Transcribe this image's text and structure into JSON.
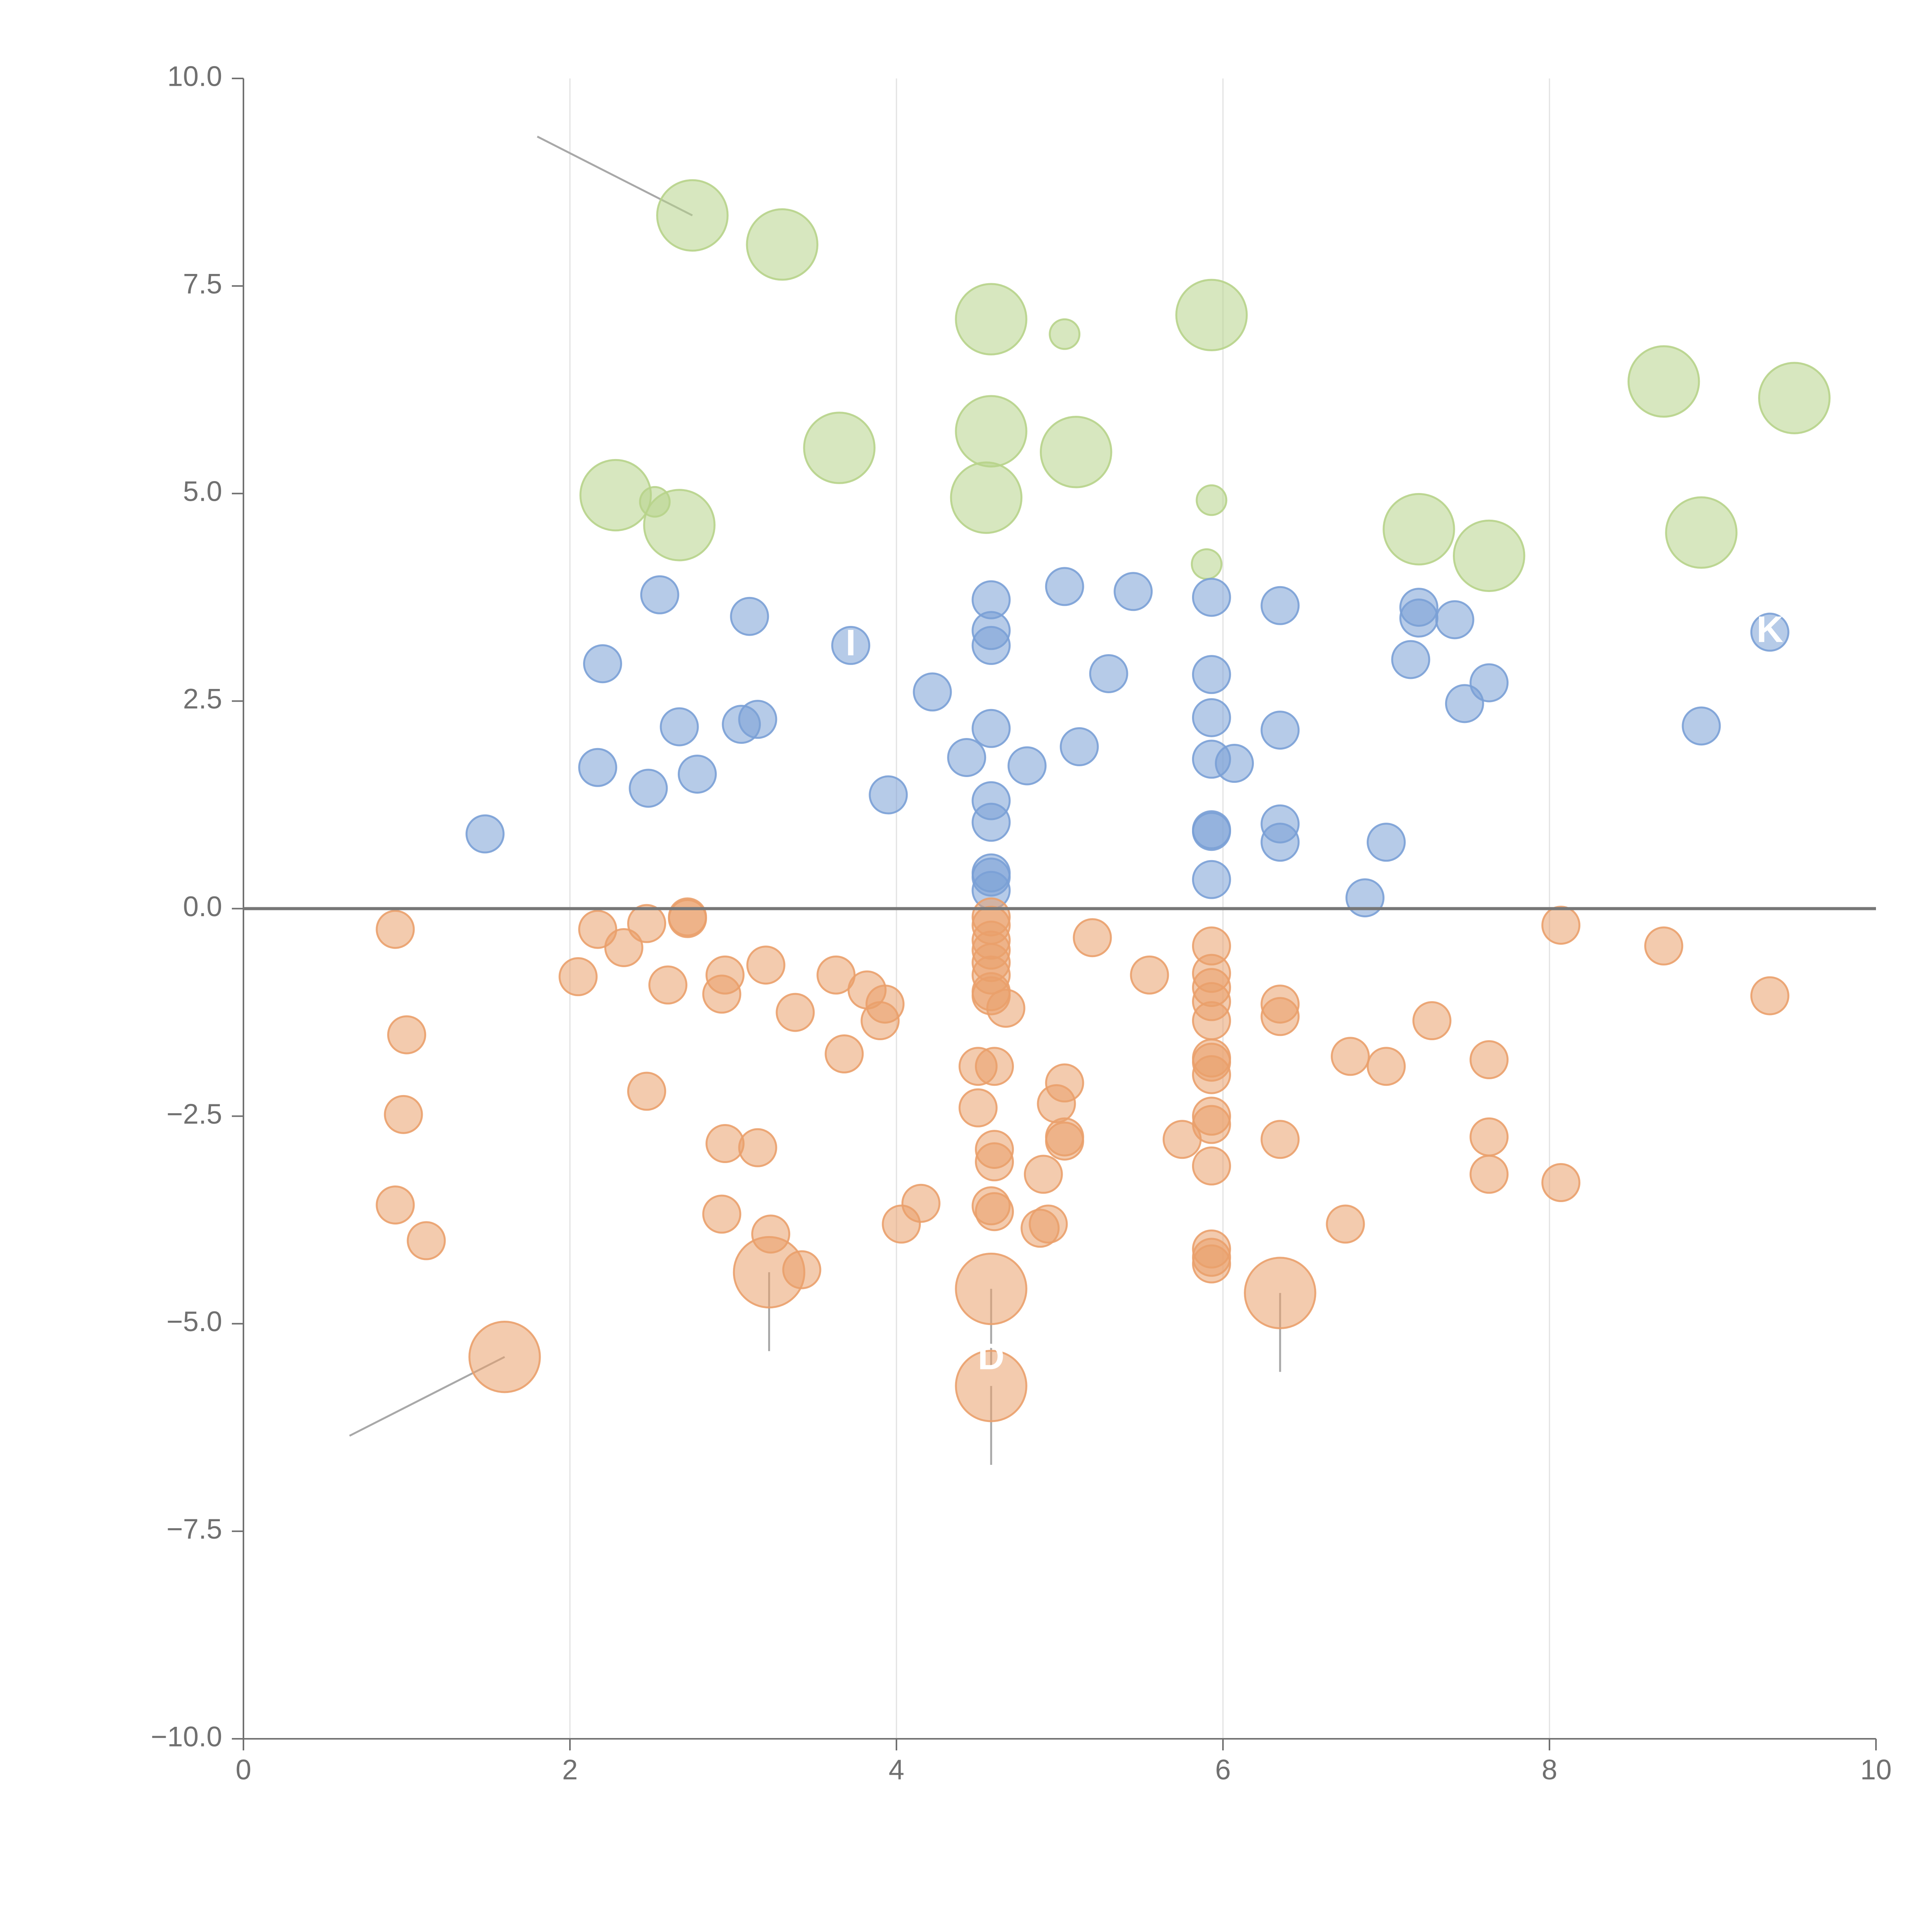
{
  "colors": {
    "positive": "#7aa0d6",
    "upper": "#b7d38a",
    "negative": "#eaa06c",
    "grid": "#e2e2e2",
    "axis": "#707070",
    "zero_line": "#777777",
    "leader": "#a8a8a8"
  },
  "chart_data": {
    "type": "scatter",
    "xlim": [
      0,
      10
    ],
    "ylim": [
      -10,
      10
    ],
    "x_ticks": [
      0,
      2,
      4,
      6,
      8,
      10
    ],
    "y_ticks": [
      10.0,
      7.5,
      5.0,
      2.5,
      0.0,
      -2.5,
      -5.0,
      -7.5,
      -10.0
    ],
    "x_tick_labels": [
      "0",
      "2",
      "4",
      "6",
      "8",
      "10"
    ],
    "y_tick_labels": [
      "10.0",
      "7.5",
      "5.0",
      "2.5",
      "0.0",
      "−2.5",
      "−5.0",
      "−7.5",
      "−10.0"
    ],
    "grid": "vertical lines at x = 2, 4, 6, 8",
    "zero_line": true,
    "series": [
      {
        "color_key": "upper",
        "points": [
          {
            "x": 2.75,
            "y": 8.35,
            "r": 1.9
          },
          {
            "x": 3.3,
            "y": 8.0,
            "r": 1.9
          },
          {
            "x": 4.58,
            "y": 7.1,
            "r": 1.9
          },
          {
            "x": 5.03,
            "y": 6.92,
            "r": 0.8
          },
          {
            "x": 5.93,
            "y": 7.15,
            "r": 1.9
          },
          {
            "x": 8.7,
            "y": 6.35,
            "r": 1.9
          },
          {
            "x": 9.5,
            "y": 6.15,
            "r": 1.9
          },
          {
            "x": 3.65,
            "y": 5.55,
            "r": 1.9
          },
          {
            "x": 4.58,
            "y": 5.75,
            "r": 1.9
          },
          {
            "x": 5.1,
            "y": 5.5,
            "r": 1.9
          },
          {
            "x": 2.28,
            "y": 4.98,
            "r": 1.9
          },
          {
            "x": 2.52,
            "y": 4.9,
            "r": 0.8
          },
          {
            "x": 2.67,
            "y": 4.62,
            "r": 1.9
          },
          {
            "x": 4.55,
            "y": 4.95,
            "r": 1.9
          },
          {
            "x": 5.93,
            "y": 4.92,
            "r": 0.8
          },
          {
            "x": 5.9,
            "y": 4.15,
            "r": 0.8
          },
          {
            "x": 7.2,
            "y": 4.57,
            "r": 1.9
          },
          {
            "x": 7.63,
            "y": 4.25,
            "r": 1.9
          },
          {
            "x": 8.93,
            "y": 4.53,
            "r": 1.9
          }
        ]
      },
      {
        "color_key": "positive",
        "points": [
          {
            "x": 2.55,
            "y": 3.78
          },
          {
            "x": 3.1,
            "y": 3.52
          },
          {
            "x": 2.2,
            "y": 2.95
          },
          {
            "x": 3.72,
            "y": 3.17
          },
          {
            "x": 2.67,
            "y": 2.19
          },
          {
            "x": 3.05,
            "y": 2.22
          },
          {
            "x": 3.15,
            "y": 2.28
          },
          {
            "x": 2.17,
            "y": 1.7
          },
          {
            "x": 2.48,
            "y": 1.45
          },
          {
            "x": 2.78,
            "y": 1.62
          },
          {
            "x": 1.48,
            "y": 0.9
          },
          {
            "x": 3.95,
            "y": 1.37
          },
          {
            "x": 4.22,
            "y": 2.61
          },
          {
            "x": 4.58,
            "y": 3.72
          },
          {
            "x": 4.58,
            "y": 3.35
          },
          {
            "x": 4.58,
            "y": 3.17
          },
          {
            "x": 4.58,
            "y": 2.17
          },
          {
            "x": 4.43,
            "y": 1.82
          },
          {
            "x": 4.8,
            "y": 1.72
          },
          {
            "x": 4.58,
            "y": 1.3
          },
          {
            "x": 4.58,
            "y": 1.04
          },
          {
            "x": 4.58,
            "y": 0.43
          },
          {
            "x": 4.58,
            "y": 0.38
          },
          {
            "x": 4.58,
            "y": 0.22
          },
          {
            "x": 5.03,
            "y": 3.88
          },
          {
            "x": 5.45,
            "y": 3.82
          },
          {
            "x": 5.3,
            "y": 2.83
          },
          {
            "x": 5.12,
            "y": 1.95
          },
          {
            "x": 5.93,
            "y": 3.75
          },
          {
            "x": 5.93,
            "y": 2.82
          },
          {
            "x": 5.93,
            "y": 2.3
          },
          {
            "x": 5.93,
            "y": 1.8
          },
          {
            "x": 6.07,
            "y": 1.75
          },
          {
            "x": 5.93,
            "y": 0.95
          },
          {
            "x": 5.93,
            "y": 0.93
          },
          {
            "x": 5.93,
            "y": 0.35
          },
          {
            "x": 6.35,
            "y": 3.65
          },
          {
            "x": 6.35,
            "y": 2.15
          },
          {
            "x": 6.35,
            "y": 1.02
          },
          {
            "x": 6.35,
            "y": 0.8
          },
          {
            "x": 6.87,
            "y": 0.13
          },
          {
            "x": 7.0,
            "y": 0.8
          },
          {
            "x": 7.2,
            "y": 3.63
          },
          {
            "x": 7.2,
            "y": 3.5
          },
          {
            "x": 7.42,
            "y": 3.48
          },
          {
            "x": 7.15,
            "y": 3.0
          },
          {
            "x": 7.48,
            "y": 2.47
          },
          {
            "x": 7.63,
            "y": 2.72
          },
          {
            "x": 8.93,
            "y": 2.2
          },
          {
            "x": 9.35,
            "y": 3.33
          }
        ]
      },
      {
        "color_key": "negative",
        "points": [
          {
            "x": 0.93,
            "y": -0.25
          },
          {
            "x": 1.0,
            "y": -1.52
          },
          {
            "x": 0.98,
            "y": -2.48
          },
          {
            "x": 0.93,
            "y": -3.57
          },
          {
            "x": 1.12,
            "y": -4.0
          },
          {
            "x": 2.05,
            "y": -0.82
          },
          {
            "x": 2.17,
            "y": -0.25
          },
          {
            "x": 2.33,
            "y": -0.47
          },
          {
            "x": 2.47,
            "y": -0.18
          },
          {
            "x": 2.72,
            "y": -0.12
          },
          {
            "x": 2.72,
            "y": -0.1
          },
          {
            "x": 2.6,
            "y": -0.92
          },
          {
            "x": 2.47,
            "y": -2.2
          },
          {
            "x": 2.95,
            "y": -0.8
          },
          {
            "x": 2.93,
            "y": -1.03
          },
          {
            "x": 3.2,
            "y": -0.68
          },
          {
            "x": 3.38,
            "y": -1.25
          },
          {
            "x": 2.95,
            "y": -2.83
          },
          {
            "x": 3.15,
            "y": -2.88
          },
          {
            "x": 2.93,
            "y": -3.68
          },
          {
            "x": 3.23,
            "y": -3.92
          },
          {
            "x": 3.42,
            "y": -4.35
          },
          {
            "x": 3.63,
            "y": -0.8
          },
          {
            "x": 3.82,
            "y": -0.98
          },
          {
            "x": 3.93,
            "y": -1.15
          },
          {
            "x": 3.9,
            "y": -1.35
          },
          {
            "x": 3.68,
            "y": -1.75
          },
          {
            "x": 4.03,
            "y": -3.8
          },
          {
            "x": 4.15,
            "y": -3.55
          },
          {
            "x": 4.58,
            "y": -0.1
          },
          {
            "x": 4.58,
            "y": -0.2
          },
          {
            "x": 4.58,
            "y": -0.38
          },
          {
            "x": 4.58,
            "y": -0.5
          },
          {
            "x": 4.58,
            "y": -0.65
          },
          {
            "x": 4.58,
            "y": -0.8
          },
          {
            "x": 4.58,
            "y": -1.0
          },
          {
            "x": 4.58,
            "y": -1.05
          },
          {
            "x": 4.67,
            "y": -1.2
          },
          {
            "x": 4.5,
            "y": -1.9
          },
          {
            "x": 4.6,
            "y": -1.9
          },
          {
            "x": 4.5,
            "y": -2.4
          },
          {
            "x": 4.6,
            "y": -2.9
          },
          {
            "x": 4.6,
            "y": -3.05
          },
          {
            "x": 4.58,
            "y": -3.58
          },
          {
            "x": 4.6,
            "y": -3.65
          },
          {
            "x": 5.2,
            "y": -0.35
          },
          {
            "x": 5.03,
            "y": -2.1
          },
          {
            "x": 4.98,
            "y": -2.35
          },
          {
            "x": 5.03,
            "y": -2.75
          },
          {
            "x": 5.03,
            "y": -2.8
          },
          {
            "x": 4.9,
            "y": -3.2
          },
          {
            "x": 4.88,
            "y": -3.85
          },
          {
            "x": 4.93,
            "y": -3.8
          },
          {
            "x": 5.55,
            "y": -0.8
          },
          {
            "x": 5.75,
            "y": -2.78
          },
          {
            "x": 5.93,
            "y": -0.45
          },
          {
            "x": 5.93,
            "y": -0.78
          },
          {
            "x": 5.93,
            "y": -0.95
          },
          {
            "x": 5.93,
            "y": -1.12
          },
          {
            "x": 5.93,
            "y": -1.35
          },
          {
            "x": 5.93,
            "y": -1.8
          },
          {
            "x": 5.93,
            "y": -1.85
          },
          {
            "x": 5.93,
            "y": -2.0
          },
          {
            "x": 5.93,
            "y": -2.5
          },
          {
            "x": 5.93,
            "y": -2.6
          },
          {
            "x": 5.93,
            "y": -3.1
          },
          {
            "x": 5.93,
            "y": -4.1
          },
          {
            "x": 5.93,
            "y": -4.2
          },
          {
            "x": 5.93,
            "y": -4.28
          },
          {
            "x": 6.35,
            "y": -1.15
          },
          {
            "x": 6.35,
            "y": -1.3
          },
          {
            "x": 6.35,
            "y": -2.78
          },
          {
            "x": 6.78,
            "y": -1.78
          },
          {
            "x": 7.0,
            "y": -1.9
          },
          {
            "x": 6.75,
            "y": -3.8
          },
          {
            "x": 7.28,
            "y": -1.35
          },
          {
            "x": 7.63,
            "y": -1.82
          },
          {
            "x": 7.63,
            "y": -2.75
          },
          {
            "x": 7.63,
            "y": -3.2
          },
          {
            "x": 8.07,
            "y": -0.2
          },
          {
            "x": 8.07,
            "y": -3.3
          },
          {
            "x": 8.7,
            "y": -0.45
          },
          {
            "x": 9.35,
            "y": -1.05
          },
          {
            "x": 1.6,
            "y": -5.4,
            "r": 1.9
          },
          {
            "x": 3.22,
            "y": -4.38,
            "r": 1.9
          },
          {
            "x": 4.58,
            "y": -4.58,
            "r": 1.9
          },
          {
            "x": 4.58,
            "y": -5.75,
            "r": 1.9
          },
          {
            "x": 6.35,
            "y": -4.63,
            "r": 1.9
          }
        ]
      }
    ],
    "leaders": [
      {
        "x1": 2.75,
        "y1": 8.35,
        "x2": 1.8,
        "y2": 9.3
      },
      {
        "x1": 1.6,
        "y1": -5.4,
        "x2": 0.65,
        "y2": -6.35
      },
      {
        "x1": 3.22,
        "y1": -4.38,
        "x2": 3.22,
        "y2": -5.33
      },
      {
        "x1": 4.58,
        "y1": -4.58,
        "x2": 4.58,
        "y2": -5.53
      },
      {
        "x1": 4.58,
        "y1": -5.75,
        "x2": 4.58,
        "y2": -6.7
      },
      {
        "x1": 6.35,
        "y1": -4.63,
        "x2": 6.35,
        "y2": -5.58
      }
    ],
    "annotations": [
      {
        "text": "K",
        "x": 9.35,
        "y": 3.33
      },
      {
        "text": "I",
        "x": 3.72,
        "y": 3.17
      },
      {
        "text": "D",
        "x": 4.58,
        "y": -5.43
      },
      {
        "text": "-",
        "x": 9.2,
        "y": 6.25
      }
    ]
  }
}
